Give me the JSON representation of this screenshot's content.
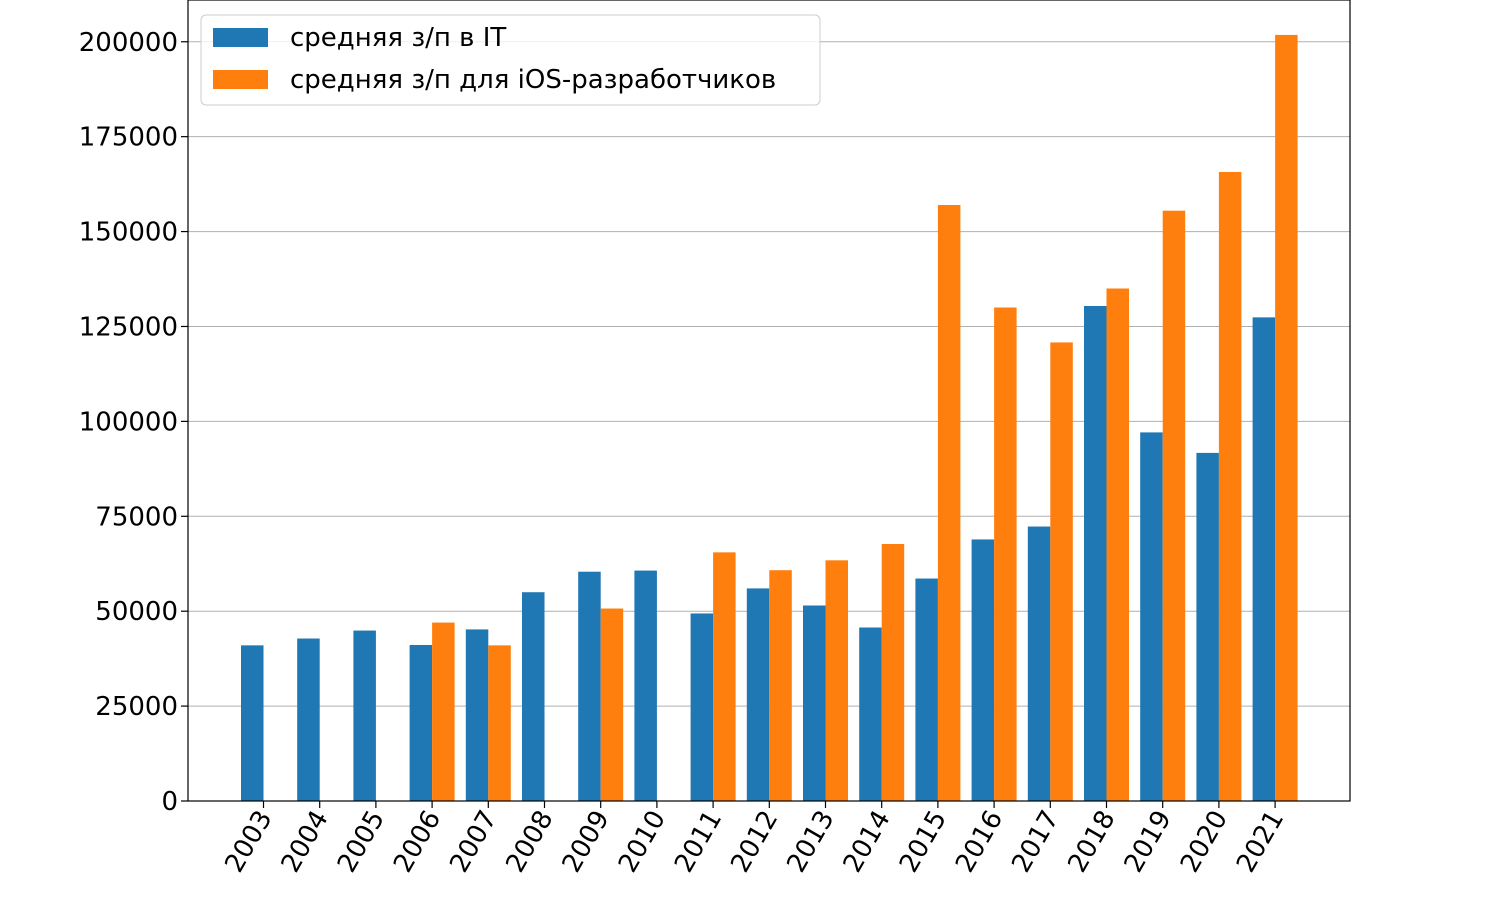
{
  "chart_data": {
    "type": "bar",
    "title": "",
    "xlabel": "",
    "ylabel": "",
    "categories": [
      "2003",
      "2004",
      "2005",
      "2006",
      "2007",
      "2008",
      "2009",
      "2010",
      "2011",
      "2012",
      "2013",
      "2014",
      "2015",
      "2016",
      "2017",
      "2018",
      "2019",
      "2020",
      "2021"
    ],
    "series": [
      {
        "name": "средняя з/п в IT",
        "color": "#1f77b4",
        "values": [
          41000,
          42800,
          44900,
          41100,
          45200,
          55000,
          60400,
          60700,
          49400,
          56000,
          51500,
          45700,
          58600,
          68900,
          72300,
          130400,
          97100,
          91700,
          127400
        ]
      },
      {
        "name": "средняя з/п для iOS-разработчиков",
        "color": "#ff7f0e",
        "values": [
          null,
          null,
          null,
          47000,
          41000,
          null,
          50700,
          null,
          65500,
          60800,
          63400,
          67700,
          157000,
          130000,
          120800,
          135000,
          155500,
          165700,
          201800
        ]
      }
    ],
    "ylim": [
      0,
      211000
    ],
    "yticks": [
      0,
      25000,
      50000,
      75000,
      100000,
      125000,
      150000,
      175000,
      200000
    ],
    "grid": "horizontal",
    "legend_position": "top-left"
  }
}
